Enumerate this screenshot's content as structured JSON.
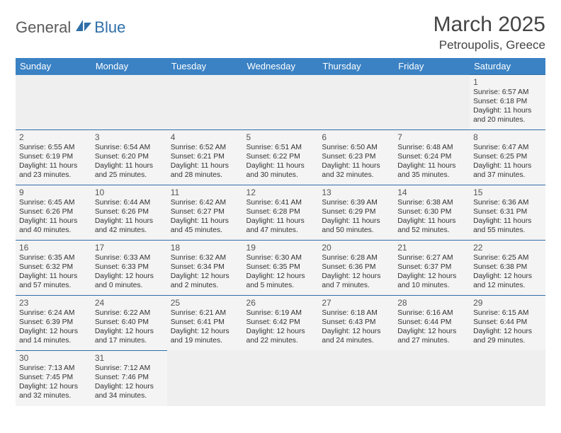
{
  "logo": {
    "part1": "General",
    "part2": "Blue"
  },
  "title": "March 2025",
  "location": "Petroupolis, Greece",
  "colors": {
    "header_bg": "#3a82c4",
    "header_text": "#ffffff",
    "cell_border": "#2f6fa8",
    "cell_bg": "#f4f4f4",
    "empty_bg": "#efefef",
    "logo_gray": "#5a5a5a",
    "logo_blue": "#2f6fa8"
  },
  "day_headers": [
    "Sunday",
    "Monday",
    "Tuesday",
    "Wednesday",
    "Thursday",
    "Friday",
    "Saturday"
  ],
  "weeks": [
    [
      null,
      null,
      null,
      null,
      null,
      null,
      {
        "n": "1",
        "sr": "Sunrise: 6:57 AM",
        "ss": "Sunset: 6:18 PM",
        "dl1": "Daylight: 11 hours",
        "dl2": "and 20 minutes."
      }
    ],
    [
      {
        "n": "2",
        "sr": "Sunrise: 6:55 AM",
        "ss": "Sunset: 6:19 PM",
        "dl1": "Daylight: 11 hours",
        "dl2": "and 23 minutes."
      },
      {
        "n": "3",
        "sr": "Sunrise: 6:54 AM",
        "ss": "Sunset: 6:20 PM",
        "dl1": "Daylight: 11 hours",
        "dl2": "and 25 minutes."
      },
      {
        "n": "4",
        "sr": "Sunrise: 6:52 AM",
        "ss": "Sunset: 6:21 PM",
        "dl1": "Daylight: 11 hours",
        "dl2": "and 28 minutes."
      },
      {
        "n": "5",
        "sr": "Sunrise: 6:51 AM",
        "ss": "Sunset: 6:22 PM",
        "dl1": "Daylight: 11 hours",
        "dl2": "and 30 minutes."
      },
      {
        "n": "6",
        "sr": "Sunrise: 6:50 AM",
        "ss": "Sunset: 6:23 PM",
        "dl1": "Daylight: 11 hours",
        "dl2": "and 32 minutes."
      },
      {
        "n": "7",
        "sr": "Sunrise: 6:48 AM",
        "ss": "Sunset: 6:24 PM",
        "dl1": "Daylight: 11 hours",
        "dl2": "and 35 minutes."
      },
      {
        "n": "8",
        "sr": "Sunrise: 6:47 AM",
        "ss": "Sunset: 6:25 PM",
        "dl1": "Daylight: 11 hours",
        "dl2": "and 37 minutes."
      }
    ],
    [
      {
        "n": "9",
        "sr": "Sunrise: 6:45 AM",
        "ss": "Sunset: 6:26 PM",
        "dl1": "Daylight: 11 hours",
        "dl2": "and 40 minutes."
      },
      {
        "n": "10",
        "sr": "Sunrise: 6:44 AM",
        "ss": "Sunset: 6:26 PM",
        "dl1": "Daylight: 11 hours",
        "dl2": "and 42 minutes."
      },
      {
        "n": "11",
        "sr": "Sunrise: 6:42 AM",
        "ss": "Sunset: 6:27 PM",
        "dl1": "Daylight: 11 hours",
        "dl2": "and 45 minutes."
      },
      {
        "n": "12",
        "sr": "Sunrise: 6:41 AM",
        "ss": "Sunset: 6:28 PM",
        "dl1": "Daylight: 11 hours",
        "dl2": "and 47 minutes."
      },
      {
        "n": "13",
        "sr": "Sunrise: 6:39 AM",
        "ss": "Sunset: 6:29 PM",
        "dl1": "Daylight: 11 hours",
        "dl2": "and 50 minutes."
      },
      {
        "n": "14",
        "sr": "Sunrise: 6:38 AM",
        "ss": "Sunset: 6:30 PM",
        "dl1": "Daylight: 11 hours",
        "dl2": "and 52 minutes."
      },
      {
        "n": "15",
        "sr": "Sunrise: 6:36 AM",
        "ss": "Sunset: 6:31 PM",
        "dl1": "Daylight: 11 hours",
        "dl2": "and 55 minutes."
      }
    ],
    [
      {
        "n": "16",
        "sr": "Sunrise: 6:35 AM",
        "ss": "Sunset: 6:32 PM",
        "dl1": "Daylight: 11 hours",
        "dl2": "and 57 minutes."
      },
      {
        "n": "17",
        "sr": "Sunrise: 6:33 AM",
        "ss": "Sunset: 6:33 PM",
        "dl1": "Daylight: 12 hours",
        "dl2": "and 0 minutes."
      },
      {
        "n": "18",
        "sr": "Sunrise: 6:32 AM",
        "ss": "Sunset: 6:34 PM",
        "dl1": "Daylight: 12 hours",
        "dl2": "and 2 minutes."
      },
      {
        "n": "19",
        "sr": "Sunrise: 6:30 AM",
        "ss": "Sunset: 6:35 PM",
        "dl1": "Daylight: 12 hours",
        "dl2": "and 5 minutes."
      },
      {
        "n": "20",
        "sr": "Sunrise: 6:28 AM",
        "ss": "Sunset: 6:36 PM",
        "dl1": "Daylight: 12 hours",
        "dl2": "and 7 minutes."
      },
      {
        "n": "21",
        "sr": "Sunrise: 6:27 AM",
        "ss": "Sunset: 6:37 PM",
        "dl1": "Daylight: 12 hours",
        "dl2": "and 10 minutes."
      },
      {
        "n": "22",
        "sr": "Sunrise: 6:25 AM",
        "ss": "Sunset: 6:38 PM",
        "dl1": "Daylight: 12 hours",
        "dl2": "and 12 minutes."
      }
    ],
    [
      {
        "n": "23",
        "sr": "Sunrise: 6:24 AM",
        "ss": "Sunset: 6:39 PM",
        "dl1": "Daylight: 12 hours",
        "dl2": "and 14 minutes."
      },
      {
        "n": "24",
        "sr": "Sunrise: 6:22 AM",
        "ss": "Sunset: 6:40 PM",
        "dl1": "Daylight: 12 hours",
        "dl2": "and 17 minutes."
      },
      {
        "n": "25",
        "sr": "Sunrise: 6:21 AM",
        "ss": "Sunset: 6:41 PM",
        "dl1": "Daylight: 12 hours",
        "dl2": "and 19 minutes."
      },
      {
        "n": "26",
        "sr": "Sunrise: 6:19 AM",
        "ss": "Sunset: 6:42 PM",
        "dl1": "Daylight: 12 hours",
        "dl2": "and 22 minutes."
      },
      {
        "n": "27",
        "sr": "Sunrise: 6:18 AM",
        "ss": "Sunset: 6:43 PM",
        "dl1": "Daylight: 12 hours",
        "dl2": "and 24 minutes."
      },
      {
        "n": "28",
        "sr": "Sunrise: 6:16 AM",
        "ss": "Sunset: 6:44 PM",
        "dl1": "Daylight: 12 hours",
        "dl2": "and 27 minutes."
      },
      {
        "n": "29",
        "sr": "Sunrise: 6:15 AM",
        "ss": "Sunset: 6:44 PM",
        "dl1": "Daylight: 12 hours",
        "dl2": "and 29 minutes."
      }
    ],
    [
      {
        "n": "30",
        "sr": "Sunrise: 7:13 AM",
        "ss": "Sunset: 7:45 PM",
        "dl1": "Daylight: 12 hours",
        "dl2": "and 32 minutes."
      },
      {
        "n": "31",
        "sr": "Sunrise: 7:12 AM",
        "ss": "Sunset: 7:46 PM",
        "dl1": "Daylight: 12 hours",
        "dl2": "and 34 minutes."
      },
      null,
      null,
      null,
      null,
      null
    ]
  ]
}
